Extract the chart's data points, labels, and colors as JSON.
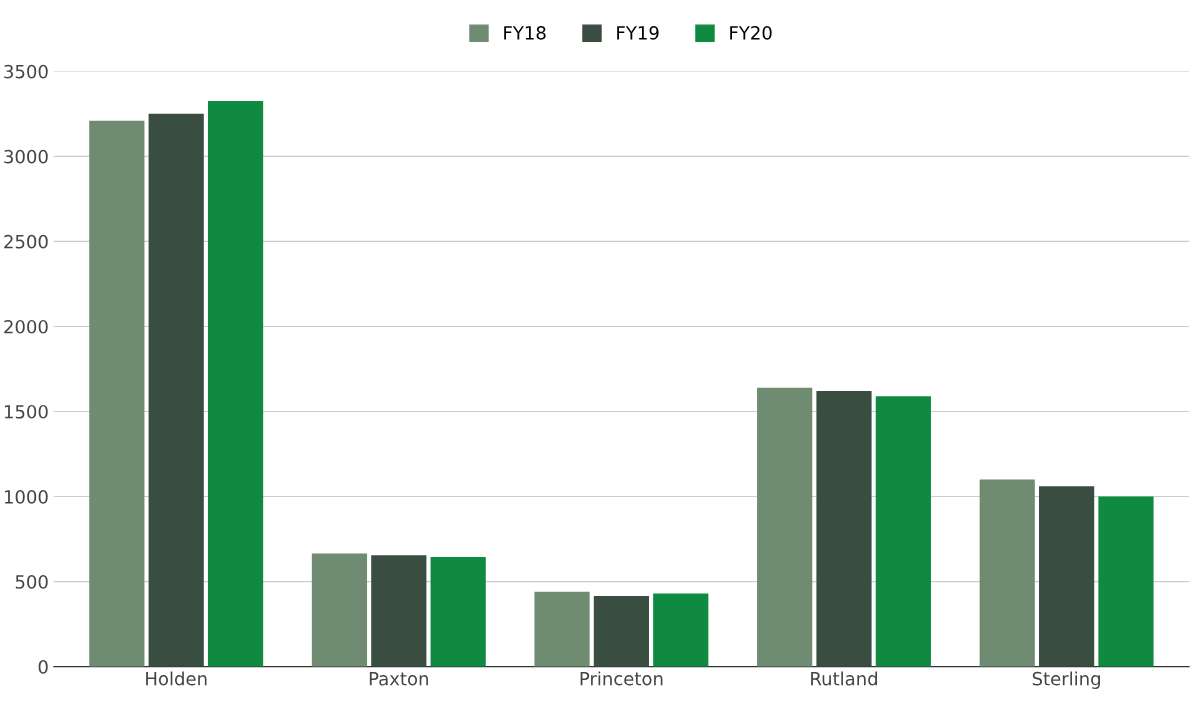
{
  "chart_data": {
    "type": "bar",
    "categories": [
      "Holden",
      "Paxton",
      "Princeton",
      "Rutland",
      "Sterling"
    ],
    "series": [
      {
        "name": "FY18",
        "color": "#6f8c72",
        "values": [
          3210,
          665,
          440,
          1640,
          1100
        ]
      },
      {
        "name": "FY19",
        "color": "#3a4d41",
        "values": [
          3250,
          655,
          415,
          1620,
          1060
        ]
      },
      {
        "name": "FY20",
        "color": "#0f8a40",
        "values": [
          3325,
          645,
          430,
          1590,
          1000
        ]
      }
    ],
    "ylim": [
      0,
      3500
    ],
    "yticks": [
      0,
      500,
      1000,
      1500,
      2000,
      2500,
      3000,
      3500
    ],
    "grid": "y",
    "legend": "top"
  }
}
